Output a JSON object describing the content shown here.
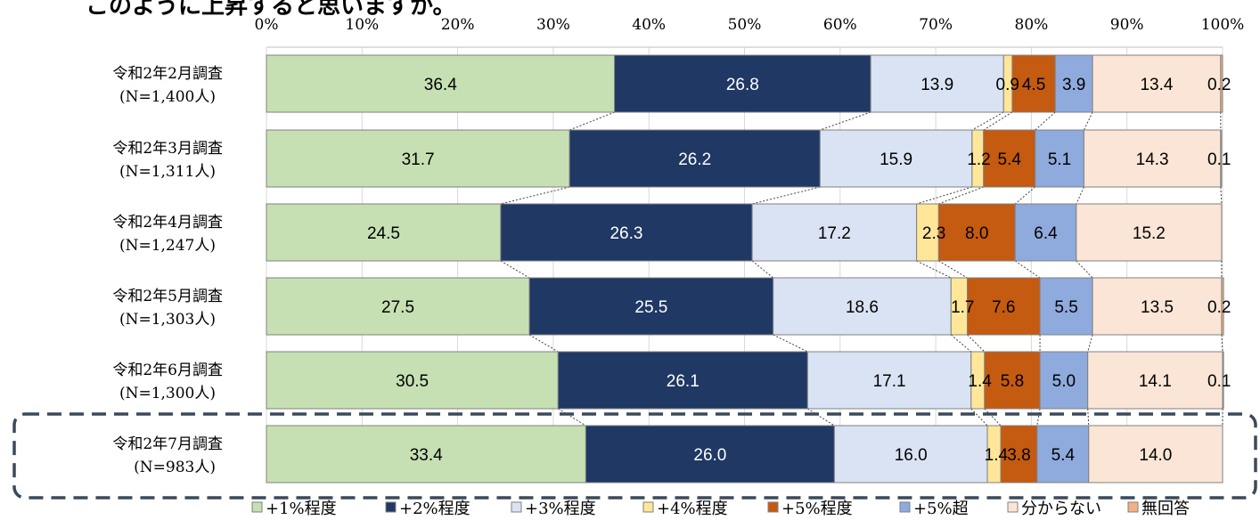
{
  "title_fragment": "このように上昇すると思いますか。",
  "chart_data": {
    "type": "bar",
    "orientation": "horizontal",
    "stacked": true,
    "normalized_percent": true,
    "xlim": [
      0,
      100
    ],
    "x_ticks": [
      "0%",
      "10%",
      "20%",
      "30%",
      "40%",
      "50%",
      "60%",
      "70%",
      "80%",
      "90%",
      "100%"
    ],
    "grid": true,
    "legend_position": "bottom",
    "categories": [
      {
        "line1": "令和2年2月調査",
        "line2": "(N=1,400人)"
      },
      {
        "line1": "令和2年3月調査",
        "line2": "(N=1,311人)"
      },
      {
        "line1": "令和2年4月調査",
        "line2": "(N=1,247人)"
      },
      {
        "line1": "令和2年5月調査",
        "line2": "(N=1,303人)"
      },
      {
        "line1": "令和2年6月調査",
        "line2": "(N=1,300人)"
      },
      {
        "line1": "令和2年7月調査",
        "line2": "(N=983人)"
      }
    ],
    "highlighted_category_index": 5,
    "series": [
      {
        "name": "+1%程度",
        "color": "#c6e0b4",
        "label_color": "#000000",
        "values": [
          36.4,
          31.7,
          24.5,
          27.5,
          30.5,
          33.4
        ],
        "labels": [
          "36.4",
          "31.7",
          "24.5",
          "27.5",
          "30.5",
          "33.4"
        ]
      },
      {
        "name": "+2%程度",
        "color": "#1f3864",
        "label_color": "#ffffff",
        "values": [
          26.8,
          26.2,
          26.3,
          25.5,
          26.1,
          26.0
        ],
        "labels": [
          "26.8",
          "26.2",
          "26.3",
          "25.5",
          "26.1",
          "26.0"
        ]
      },
      {
        "name": "+3%程度",
        "color": "#dae3f3",
        "label_color": "#000000",
        "values": [
          13.9,
          15.9,
          17.2,
          18.6,
          17.1,
          16.0
        ],
        "labels": [
          "13.9",
          "15.9",
          "17.2",
          "18.6",
          "17.1",
          "16.0"
        ]
      },
      {
        "name": "+4%程度",
        "color": "#ffe699",
        "label_color": "#000000",
        "values": [
          0.9,
          1.2,
          2.3,
          1.7,
          1.4,
          1.4
        ],
        "labels": [
          "0.9",
          "1.2",
          "2.3",
          "1.7",
          "1.4",
          "1.4"
        ]
      },
      {
        "name": "+5%程度",
        "color": "#c55a11",
        "label_color": "#000000",
        "values": [
          4.5,
          5.4,
          8.0,
          7.6,
          5.8,
          3.8
        ],
        "labels": [
          "4.5",
          "5.4",
          "8.0",
          "7.6",
          "5.8",
          "3.8"
        ]
      },
      {
        "name": "+5%超",
        "color": "#8faadc",
        "label_color": "#000000",
        "values": [
          3.9,
          5.1,
          6.4,
          5.5,
          5.0,
          5.4
        ],
        "labels": [
          "3.9",
          "5.1",
          "6.4",
          "5.5",
          "5.0",
          "5.4"
        ]
      },
      {
        "name": "分からない",
        "color": "#fbe5d6",
        "label_color": "#000000",
        "values": [
          13.4,
          14.3,
          15.2,
          13.5,
          14.1,
          14.0
        ],
        "labels": [
          "13.4",
          "14.3",
          "15.2",
          "13.5",
          "14.1",
          "14.0"
        ]
      },
      {
        "name": "無回答",
        "color": "#f4b183",
        "label_color": "#000000",
        "values": [
          0.2,
          0.1,
          0.0,
          0.2,
          0.1,
          0.0
        ],
        "labels": [
          "0.2",
          "0.1",
          "",
          "0.2",
          "0.1",
          ""
        ]
      }
    ]
  }
}
